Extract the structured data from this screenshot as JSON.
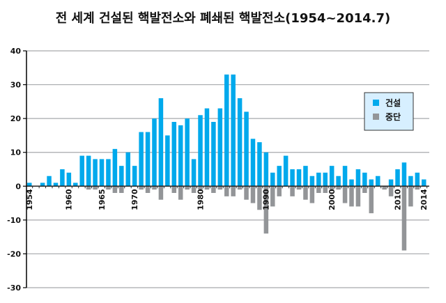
{
  "title": "전 세계 건설된 핵발전소와 폐쇄된 핵발전소(1954~2014.7)",
  "chart_data": {
    "type": "bar",
    "title": "전 세계 건설된 핵발전소와 폐쇄된 핵발전소(1954~2014.7)",
    "x_start": 1954,
    "categories": [
      1954,
      1955,
      1956,
      1957,
      1958,
      1959,
      1960,
      1961,
      1962,
      1963,
      1964,
      1965,
      1966,
      1967,
      1968,
      1969,
      1970,
      1971,
      1972,
      1973,
      1974,
      1975,
      1976,
      1977,
      1978,
      1979,
      1980,
      1981,
      1982,
      1983,
      1984,
      1985,
      1986,
      1987,
      1988,
      1989,
      1990,
      1991,
      1992,
      1993,
      1994,
      1995,
      1996,
      1997,
      1998,
      1999,
      2000,
      2001,
      2002,
      2003,
      2004,
      2005,
      2006,
      2007,
      2008,
      2009,
      2010,
      2011,
      2012,
      2013,
      2014
    ],
    "x_tick_labels": [
      "1954",
      "1960",
      "1965",
      "1970",
      "1980",
      "1990",
      "2000",
      "2010",
      "2014"
    ],
    "ylim": [
      -30,
      40
    ],
    "y_ticks": [
      40,
      30,
      20,
      10,
      0,
      -10,
      -20,
      -30
    ],
    "grid": true,
    "legend_position": "right",
    "series": [
      {
        "name": "건설",
        "color": "#00a9ec",
        "values": [
          1,
          0,
          1,
          3,
          1,
          5,
          4,
          1,
          9,
          9,
          8,
          8,
          8,
          11,
          6,
          10,
          6,
          16,
          16,
          20,
          26,
          15,
          19,
          18,
          20,
          8,
          21,
          23,
          19,
          23,
          33,
          33,
          26,
          22,
          14,
          13,
          10,
          4,
          6,
          9,
          5,
          5,
          6,
          3,
          4,
          4,
          6,
          3,
          6,
          2,
          5,
          4,
          2,
          3,
          0,
          2,
          5,
          7,
          3,
          4,
          2
        ]
      },
      {
        "name": "중단",
        "color": "#939598",
        "values": [
          0,
          0,
          0,
          0,
          0,
          0,
          0,
          0,
          0,
          -1,
          -1,
          0,
          -1,
          -2,
          -2,
          0,
          0,
          -1,
          -2,
          -1,
          -4,
          0,
          -2,
          -4,
          -1,
          -2,
          -1,
          -1,
          -2,
          -1,
          -3,
          -3,
          -1,
          -4,
          -5,
          -7,
          -14,
          -6,
          -3,
          0,
          -3,
          -1,
          -4,
          -5,
          -2,
          -2,
          -1,
          -1,
          -5,
          -6,
          -6,
          -2,
          -8,
          0,
          -1,
          -3,
          0,
          -19,
          -6,
          -1,
          0
        ]
      }
    ]
  }
}
